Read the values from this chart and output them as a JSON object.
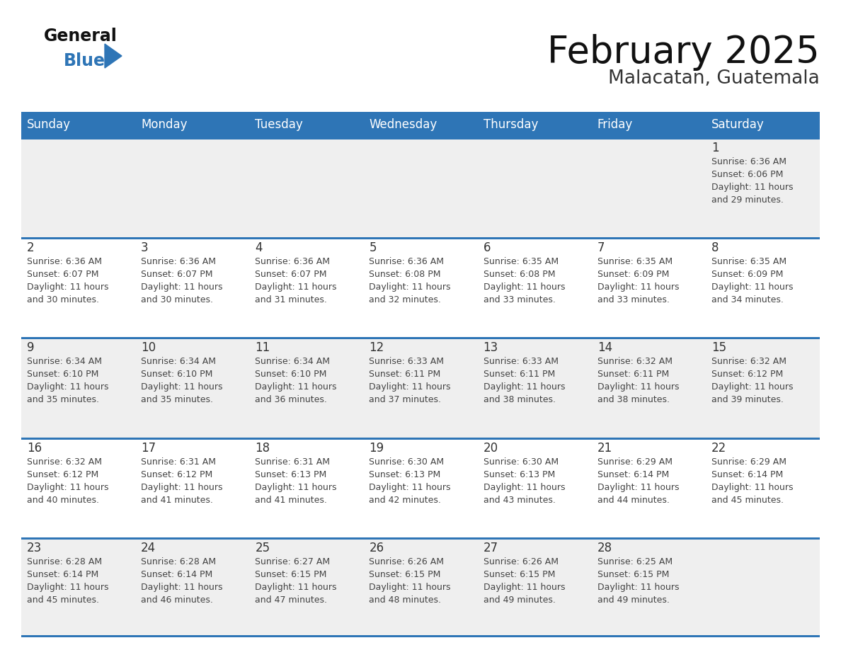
{
  "title": "February 2025",
  "subtitle": "Malacatan, Guatemala",
  "header_bg": "#2e75b6",
  "header_text_color": "#ffffff",
  "row_bg_even": "#efefef",
  "row_bg_odd": "#ffffff",
  "cell_border_color": "#2e75b6",
  "text_color": "#333333",
  "info_color": "#444444",
  "day_headers": [
    "Sunday",
    "Monday",
    "Tuesday",
    "Wednesday",
    "Thursday",
    "Friday",
    "Saturday"
  ],
  "days": [
    {
      "day": 1,
      "col": 6,
      "row": 0,
      "sunrise": "6:36 AM",
      "sunset": "6:06 PM",
      "daylight_hours": 11,
      "daylight_minutes": 29
    },
    {
      "day": 2,
      "col": 0,
      "row": 1,
      "sunrise": "6:36 AM",
      "sunset": "6:07 PM",
      "daylight_hours": 11,
      "daylight_minutes": 30
    },
    {
      "day": 3,
      "col": 1,
      "row": 1,
      "sunrise": "6:36 AM",
      "sunset": "6:07 PM",
      "daylight_hours": 11,
      "daylight_minutes": 30
    },
    {
      "day": 4,
      "col": 2,
      "row": 1,
      "sunrise": "6:36 AM",
      "sunset": "6:07 PM",
      "daylight_hours": 11,
      "daylight_minutes": 31
    },
    {
      "day": 5,
      "col": 3,
      "row": 1,
      "sunrise": "6:36 AM",
      "sunset": "6:08 PM",
      "daylight_hours": 11,
      "daylight_minutes": 32
    },
    {
      "day": 6,
      "col": 4,
      "row": 1,
      "sunrise": "6:35 AM",
      "sunset": "6:08 PM",
      "daylight_hours": 11,
      "daylight_minutes": 33
    },
    {
      "day": 7,
      "col": 5,
      "row": 1,
      "sunrise": "6:35 AM",
      "sunset": "6:09 PM",
      "daylight_hours": 11,
      "daylight_minutes": 33
    },
    {
      "day": 8,
      "col": 6,
      "row": 1,
      "sunrise": "6:35 AM",
      "sunset": "6:09 PM",
      "daylight_hours": 11,
      "daylight_minutes": 34
    },
    {
      "day": 9,
      "col": 0,
      "row": 2,
      "sunrise": "6:34 AM",
      "sunset": "6:10 PM",
      "daylight_hours": 11,
      "daylight_minutes": 35
    },
    {
      "day": 10,
      "col": 1,
      "row": 2,
      "sunrise": "6:34 AM",
      "sunset": "6:10 PM",
      "daylight_hours": 11,
      "daylight_minutes": 35
    },
    {
      "day": 11,
      "col": 2,
      "row": 2,
      "sunrise": "6:34 AM",
      "sunset": "6:10 PM",
      "daylight_hours": 11,
      "daylight_minutes": 36
    },
    {
      "day": 12,
      "col": 3,
      "row": 2,
      "sunrise": "6:33 AM",
      "sunset": "6:11 PM",
      "daylight_hours": 11,
      "daylight_minutes": 37
    },
    {
      "day": 13,
      "col": 4,
      "row": 2,
      "sunrise": "6:33 AM",
      "sunset": "6:11 PM",
      "daylight_hours": 11,
      "daylight_minutes": 38
    },
    {
      "day": 14,
      "col": 5,
      "row": 2,
      "sunrise": "6:32 AM",
      "sunset": "6:11 PM",
      "daylight_hours": 11,
      "daylight_minutes": 38
    },
    {
      "day": 15,
      "col": 6,
      "row": 2,
      "sunrise": "6:32 AM",
      "sunset": "6:12 PM",
      "daylight_hours": 11,
      "daylight_minutes": 39
    },
    {
      "day": 16,
      "col": 0,
      "row": 3,
      "sunrise": "6:32 AM",
      "sunset": "6:12 PM",
      "daylight_hours": 11,
      "daylight_minutes": 40
    },
    {
      "day": 17,
      "col": 1,
      "row": 3,
      "sunrise": "6:31 AM",
      "sunset": "6:12 PM",
      "daylight_hours": 11,
      "daylight_minutes": 41
    },
    {
      "day": 18,
      "col": 2,
      "row": 3,
      "sunrise": "6:31 AM",
      "sunset": "6:13 PM",
      "daylight_hours": 11,
      "daylight_minutes": 41
    },
    {
      "day": 19,
      "col": 3,
      "row": 3,
      "sunrise": "6:30 AM",
      "sunset": "6:13 PM",
      "daylight_hours": 11,
      "daylight_minutes": 42
    },
    {
      "day": 20,
      "col": 4,
      "row": 3,
      "sunrise": "6:30 AM",
      "sunset": "6:13 PM",
      "daylight_hours": 11,
      "daylight_minutes": 43
    },
    {
      "day": 21,
      "col": 5,
      "row": 3,
      "sunrise": "6:29 AM",
      "sunset": "6:14 PM",
      "daylight_hours": 11,
      "daylight_minutes": 44
    },
    {
      "day": 22,
      "col": 6,
      "row": 3,
      "sunrise": "6:29 AM",
      "sunset": "6:14 PM",
      "daylight_hours": 11,
      "daylight_minutes": 45
    },
    {
      "day": 23,
      "col": 0,
      "row": 4,
      "sunrise": "6:28 AM",
      "sunset": "6:14 PM",
      "daylight_hours": 11,
      "daylight_minutes": 45
    },
    {
      "day": 24,
      "col": 1,
      "row": 4,
      "sunrise": "6:28 AM",
      "sunset": "6:14 PM",
      "daylight_hours": 11,
      "daylight_minutes": 46
    },
    {
      "day": 25,
      "col": 2,
      "row": 4,
      "sunrise": "6:27 AM",
      "sunset": "6:15 PM",
      "daylight_hours": 11,
      "daylight_minutes": 47
    },
    {
      "day": 26,
      "col": 3,
      "row": 4,
      "sunrise": "6:26 AM",
      "sunset": "6:15 PM",
      "daylight_hours": 11,
      "daylight_minutes": 48
    },
    {
      "day": 27,
      "col": 4,
      "row": 4,
      "sunrise": "6:26 AM",
      "sunset": "6:15 PM",
      "daylight_hours": 11,
      "daylight_minutes": 49
    },
    {
      "day": 28,
      "col": 5,
      "row": 4,
      "sunrise": "6:25 AM",
      "sunset": "6:15 PM",
      "daylight_hours": 11,
      "daylight_minutes": 49
    }
  ]
}
